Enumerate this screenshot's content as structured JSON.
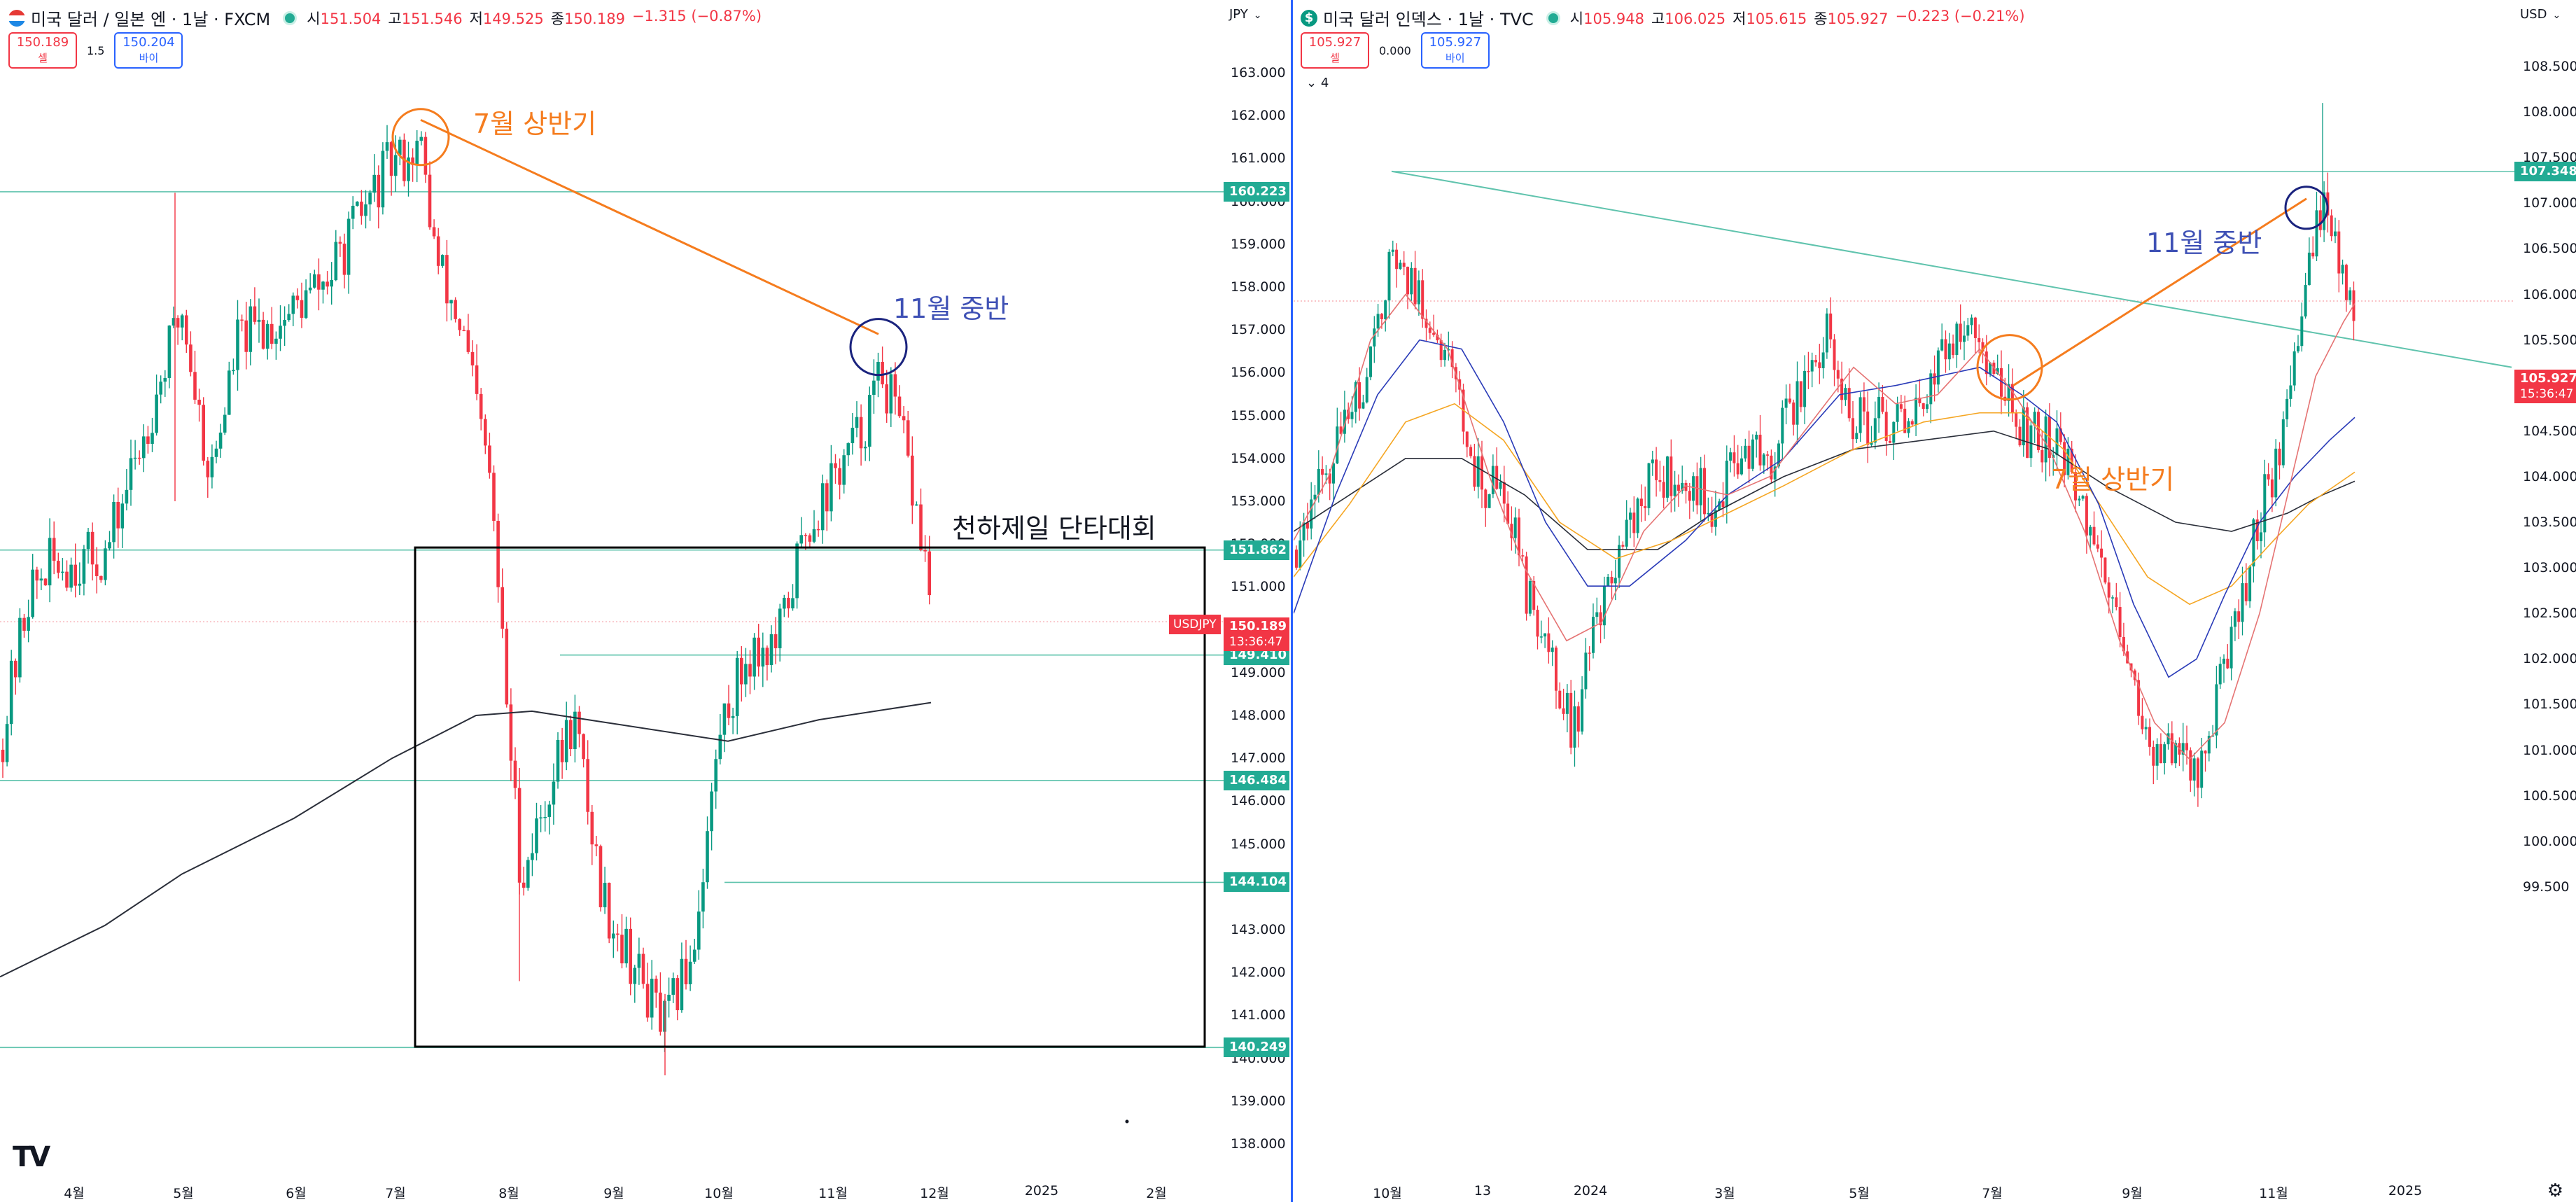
{
  "left": {
    "symbol": "미국 달러 / 일본 엔 · 1날 · FXCM",
    "ohlc": {
      "o_label": "시",
      "o": "151.504",
      "h_label": "고",
      "h": "151.546",
      "l_label": "저",
      "l": "149.525",
      "c_label": "종",
      "c": "150.189",
      "chg": "−1.315 (−0.87%)"
    },
    "trade": {
      "sell_price": "150.189",
      "sell_label": "셀",
      "spread": "1.5",
      "buy_price": "150.204",
      "buy_label": "바이"
    },
    "currency": "JPY",
    "y_ticks": [
      "163.000",
      "162.000",
      "161.000",
      "160.000",
      "159.000",
      "158.000",
      "157.000",
      "156.000",
      "155.000",
      "154.000",
      "153.000",
      "152.000",
      "151.000",
      "150.000",
      "149.000",
      "148.000",
      "147.000",
      "146.000",
      "145.000",
      "144.000",
      "143.000",
      "142.000",
      "141.000",
      "140.000",
      "139.000",
      "138.000"
    ],
    "x_ticks": [
      "4월",
      "5월",
      "6월",
      "7월",
      "8월",
      "9월",
      "10월",
      "11월",
      "12월",
      "2025",
      "2월"
    ],
    "levels": [
      "160.223",
      "151.862",
      "149.410",
      "146.484",
      "144.104",
      "140.249"
    ],
    "current_price": {
      "tag": "USDJPY",
      "price": "150.189",
      "timer": "13:36:47"
    },
    "annotations": {
      "july": "7월 상반기",
      "nov": "11월 중반",
      "box": "천하제일 단타대회"
    }
  },
  "right": {
    "symbol": "미국 달러 인덱스 · 1날 · TVC",
    "ohlc": {
      "o_label": "시",
      "o": "105.948",
      "h_label": "고",
      "h": "106.025",
      "l_label": "저",
      "l": "105.615",
      "c_label": "종",
      "c": "105.927",
      "chg": "−0.223 (−0.21%)"
    },
    "trade": {
      "sell_price": "105.927",
      "sell_label": "셀",
      "spread": "0.000",
      "buy_price": "105.927",
      "buy_label": "바이"
    },
    "currency": "USD",
    "indicator_count": "4",
    "y_ticks": [
      "108.500",
      "108.000",
      "107.500",
      "107.000",
      "106.500",
      "106.000",
      "105.500",
      "105.000",
      "104.500",
      "104.000",
      "103.500",
      "103.000",
      "102.500",
      "102.000",
      "101.500",
      "101.000",
      "100.500",
      "100.000",
      "99.500"
    ],
    "x_ticks": [
      "10월",
      "13",
      "2024",
      "3월",
      "5월",
      "7월",
      "9월",
      "11월",
      "2025"
    ],
    "levels": [
      "107.348"
    ],
    "current_price": {
      "price": "105.927",
      "timer": "15:36:47"
    },
    "annotations": {
      "nov": "11월 중반",
      "july": "7월 상반기"
    }
  },
  "colors": {
    "up": "#089981",
    "down": "#f23645",
    "level": "#22ab94",
    "orange": "#f57c1e",
    "circle_blue": "#1a237e",
    "accent": "#2962ff"
  },
  "icons": {
    "logo": "tradingview-logo",
    "settings": "gear-icon"
  }
}
